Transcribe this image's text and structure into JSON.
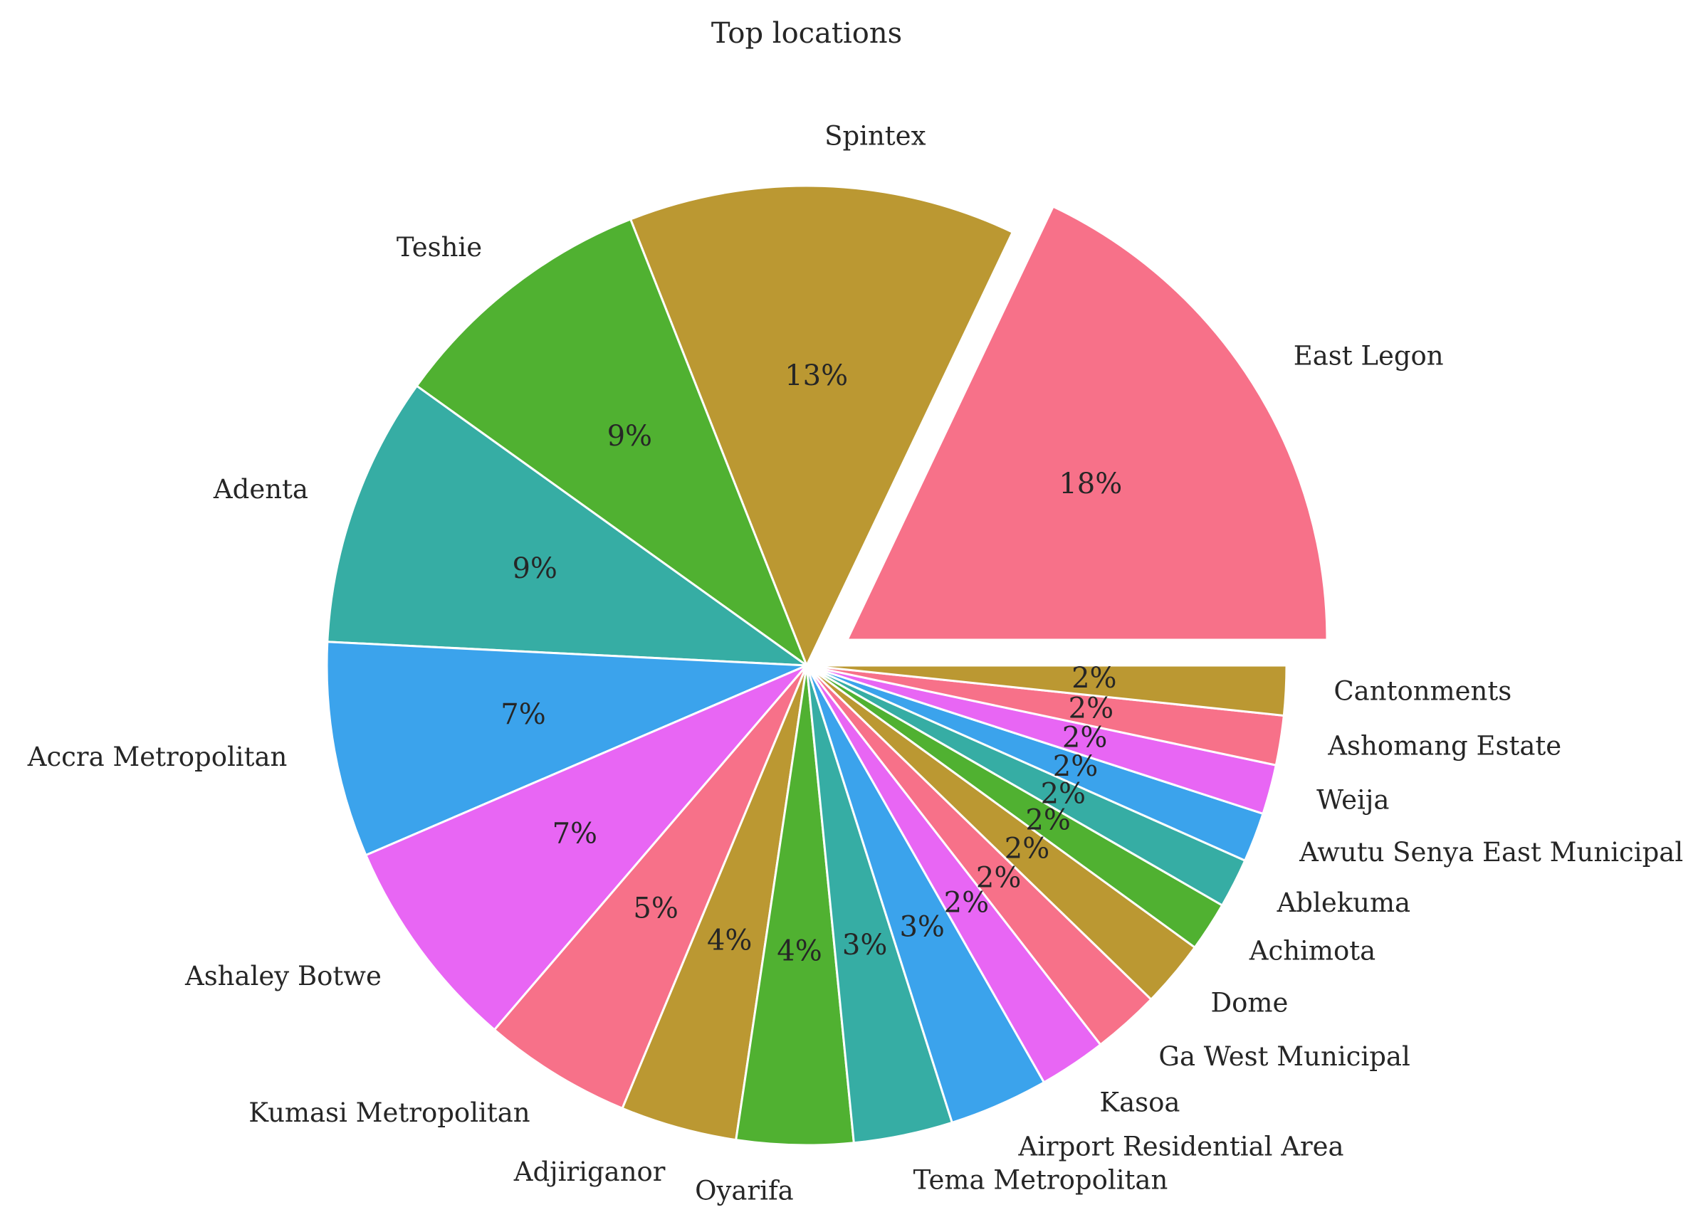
{
  "chart_data": {
    "type": "pie",
    "title": "Top locations",
    "categories": [
      "East Legon",
      "Spintex",
      "Teshie",
      "Adenta",
      "Accra Metropolitan",
      "Ashaley Botwe",
      "Kumasi Metropolitan",
      "Adjiriganor",
      "Oyarifa",
      "Tema Metropolitan",
      "Airport Residential Area",
      "Kasoa",
      "Ga West Municipal",
      "Dome",
      "Achimota",
      "Ablekuma",
      "Awutu Senya East Municipal",
      "Weija",
      "Ashomang Estate",
      "Cantonments"
    ],
    "values": [
      18.3,
      13.3,
      9.3,
      9.3,
      7.4,
      7.4,
      5.1,
      4.0,
      4.0,
      3.4,
      3.4,
      2.3,
      2.3,
      2.3,
      1.7,
      1.7,
      1.7,
      1.7,
      1.7,
      1.7
    ],
    "percent_labels": [
      "18%",
      "13%",
      "9%",
      "9%",
      "7%",
      "7%",
      "5%",
      "4%",
      "4%",
      "3%",
      "3%",
      "2%",
      "2%",
      "2%",
      "2%",
      "2%",
      "2%",
      "2%",
      "2%",
      "2%"
    ],
    "colors": [
      "#f77189",
      "#bb9832",
      "#50b131",
      "#36ada4",
      "#3ba3ec",
      "#e866f4"
    ],
    "start_angle_deg": 0,
    "direction": "counterclockwise",
    "exploded": [
      "East Legon"
    ]
  }
}
